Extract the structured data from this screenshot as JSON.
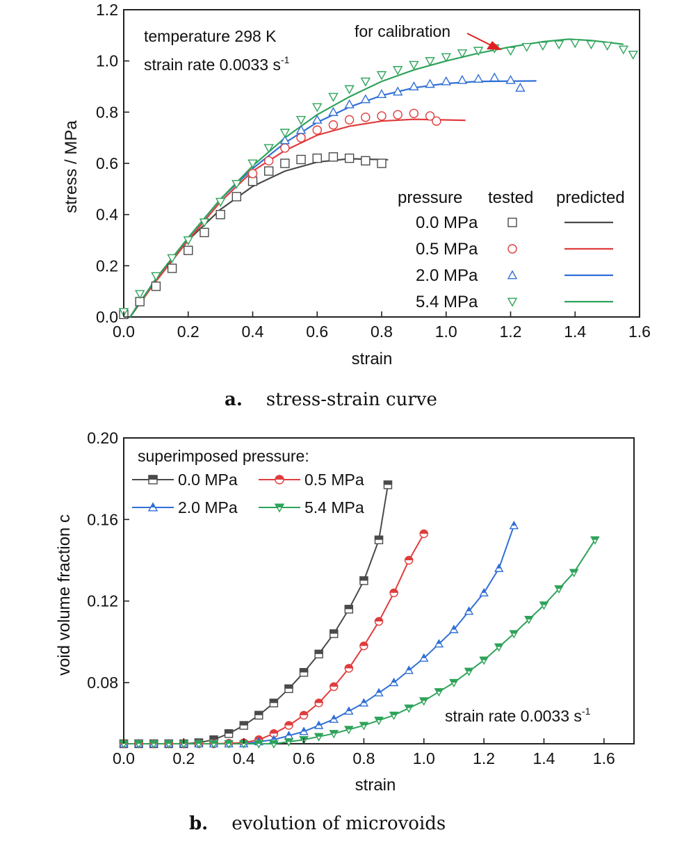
{
  "figure": {
    "panel_a_caption": {
      "letter": "a.",
      "text": "stress-strain curve"
    },
    "panel_b_caption": {
      "letter": "b.",
      "text": "evolution of microvoids"
    }
  },
  "chart_data": [
    {
      "type": "line",
      "panel": "a",
      "xlabel": "strain",
      "ylabel": "stress / MPa",
      "xlim": [
        0,
        1.6
      ],
      "ylim": [
        0,
        1.2
      ],
      "xticks": [
        "0.0",
        "0.2",
        "0.4",
        "0.6",
        "0.8",
        "1.0",
        "1.2",
        "1.4",
        "1.6"
      ],
      "yticks": [
        "0.0",
        "0.2",
        "0.4",
        "0.6",
        "0.8",
        "1.0",
        "1.2"
      ],
      "annotations": {
        "condition_line1": "temperature 298 K",
        "condition_line2": "strain rate 0.0033 s",
        "condition_sup": "-1",
        "arrow_label": "for calibration"
      },
      "legend": {
        "placement": "bottom-right",
        "header_pressure": "pressure",
        "header_tested": "tested",
        "header_predicted": "predicted"
      },
      "series": [
        {
          "name": "0.0 MPa",
          "color": "#4a4a4a",
          "marker": "square",
          "predicted": [
            [
              0.02,
              0
            ],
            [
              0.05,
              0.06
            ],
            [
              0.1,
              0.14
            ],
            [
              0.15,
              0.22
            ],
            [
              0.2,
              0.3
            ],
            [
              0.3,
              0.42
            ],
            [
              0.4,
              0.51
            ],
            [
              0.5,
              0.57
            ],
            [
              0.6,
              0.605
            ],
            [
              0.7,
              0.618
            ],
            [
              0.82,
              0.614
            ]
          ],
          "tested": [
            [
              0,
              0.01
            ],
            [
              0.05,
              0.06
            ],
            [
              0.1,
              0.12
            ],
            [
              0.15,
              0.19
            ],
            [
              0.2,
              0.26
            ],
            [
              0.25,
              0.33
            ],
            [
              0.3,
              0.4
            ],
            [
              0.35,
              0.47
            ],
            [
              0.4,
              0.53
            ],
            [
              0.45,
              0.57
            ],
            [
              0.5,
              0.6
            ],
            [
              0.55,
              0.615
            ],
            [
              0.6,
              0.62
            ],
            [
              0.65,
              0.625
            ],
            [
              0.7,
              0.62
            ],
            [
              0.75,
              0.61
            ],
            [
              0.8,
              0.6
            ]
          ]
        },
        {
          "name": "0.5 MPa",
          "color": "#e03c3c",
          "marker": "circle",
          "predicted": [
            [
              0.02,
              0
            ],
            [
              0.1,
              0.14
            ],
            [
              0.2,
              0.3
            ],
            [
              0.3,
              0.45
            ],
            [
              0.4,
              0.57
            ],
            [
              0.5,
              0.65
            ],
            [
              0.6,
              0.71
            ],
            [
              0.7,
              0.745
            ],
            [
              0.8,
              0.765
            ],
            [
              0.9,
              0.772
            ],
            [
              1.06,
              0.768
            ]
          ],
          "tested": [
            [
              0.4,
              0.56
            ],
            [
              0.45,
              0.61
            ],
            [
              0.5,
              0.66
            ],
            [
              0.55,
              0.7
            ],
            [
              0.6,
              0.73
            ],
            [
              0.65,
              0.75
            ],
            [
              0.7,
              0.77
            ],
            [
              0.75,
              0.78
            ],
            [
              0.8,
              0.785
            ],
            [
              0.85,
              0.79
            ],
            [
              0.9,
              0.795
            ],
            [
              0.95,
              0.785
            ],
            [
              0.97,
              0.765
            ]
          ]
        },
        {
          "name": "2.0 MPa",
          "color": "#2f6fd6",
          "marker": "triangle-up",
          "predicted": [
            [
              0.02,
              0
            ],
            [
              0.1,
              0.15
            ],
            [
              0.2,
              0.31
            ],
            [
              0.3,
              0.46
            ],
            [
              0.4,
              0.58
            ],
            [
              0.5,
              0.68
            ],
            [
              0.6,
              0.76
            ],
            [
              0.7,
              0.82
            ],
            [
              0.8,
              0.865
            ],
            [
              0.9,
              0.895
            ],
            [
              1.0,
              0.912
            ],
            [
              1.1,
              0.92
            ],
            [
              1.28,
              0.922
            ]
          ],
          "tested": [
            [
              0.5,
              0.69
            ],
            [
              0.55,
              0.73
            ],
            [
              0.6,
              0.77
            ],
            [
              0.65,
              0.8
            ],
            [
              0.7,
              0.83
            ],
            [
              0.75,
              0.85
            ],
            [
              0.8,
              0.87
            ],
            [
              0.85,
              0.88
            ],
            [
              0.9,
              0.9
            ],
            [
              0.95,
              0.91
            ],
            [
              1.0,
              0.92
            ],
            [
              1.05,
              0.925
            ],
            [
              1.1,
              0.93
            ],
            [
              1.15,
              0.935
            ],
            [
              1.2,
              0.925
            ],
            [
              1.23,
              0.895
            ]
          ]
        },
        {
          "name": "5.4 MPa",
          "color": "#2ea35a",
          "marker": "triangle-down",
          "predicted": [
            [
              0.02,
              0
            ],
            [
              0.1,
              0.15
            ],
            [
              0.2,
              0.31
            ],
            [
              0.3,
              0.46
            ],
            [
              0.4,
              0.59
            ],
            [
              0.5,
              0.7
            ],
            [
              0.6,
              0.79
            ],
            [
              0.7,
              0.86
            ],
            [
              0.8,
              0.92
            ],
            [
              0.9,
              0.965
            ],
            [
              1.0,
              1.0
            ],
            [
              1.1,
              1.03
            ],
            [
              1.2,
              1.055
            ],
            [
              1.3,
              1.075
            ],
            [
              1.38,
              1.085
            ],
            [
              1.45,
              1.08
            ],
            [
              1.55,
              1.065
            ]
          ],
          "tested": [
            [
              0,
              0.02
            ],
            [
              0.05,
              0.09
            ],
            [
              0.1,
              0.16
            ],
            [
              0.15,
              0.23
            ],
            [
              0.2,
              0.3
            ],
            [
              0.25,
              0.37
            ],
            [
              0.3,
              0.45
            ],
            [
              0.35,
              0.52
            ],
            [
              0.4,
              0.6
            ],
            [
              0.45,
              0.66
            ],
            [
              0.5,
              0.72
            ],
            [
              0.55,
              0.77
            ],
            [
              0.6,
              0.82
            ],
            [
              0.65,
              0.86
            ],
            [
              0.7,
              0.89
            ],
            [
              0.75,
              0.92
            ],
            [
              0.8,
              0.945
            ],
            [
              0.85,
              0.965
            ],
            [
              0.9,
              0.985
            ],
            [
              0.95,
              1.0
            ],
            [
              1.0,
              1.015
            ],
            [
              1.05,
              1.03
            ],
            [
              1.1,
              1.04
            ],
            [
              1.15,
              1.05
            ],
            [
              1.2,
              1.04
            ],
            [
              1.25,
              1.055
            ],
            [
              1.3,
              1.06
            ],
            [
              1.35,
              1.065
            ],
            [
              1.4,
              1.07
            ],
            [
              1.45,
              1.065
            ],
            [
              1.5,
              1.06
            ],
            [
              1.55,
              1.045
            ],
            [
              1.58,
              1.025
            ]
          ]
        }
      ]
    },
    {
      "type": "line",
      "panel": "b",
      "xlabel": "strain",
      "ylabel": "void volume fraction c",
      "xlim": [
        0,
        1.7
      ],
      "ylim": [
        0.05,
        0.2
      ],
      "xticks": [
        "0.0",
        "0.2",
        "0.4",
        "0.6",
        "0.8",
        "1.0",
        "1.2",
        "1.4",
        "1.6"
      ],
      "yticks": [
        "0.08",
        "0.12",
        "0.16",
        "0.20"
      ],
      "annotations": {
        "strain_rate_text": "strain rate 0.0033 s",
        "strain_rate_sup": "-1"
      },
      "legend": {
        "placement": "top-left",
        "title": "superimposed pressure:"
      },
      "series": [
        {
          "name": "0.0 MPa",
          "color": "#4a4a4a",
          "marker": "half-square",
          "points": [
            [
              0,
              0.05
            ],
            [
              0.1,
              0.05
            ],
            [
              0.2,
              0.05
            ],
            [
              0.25,
              0.0505
            ],
            [
              0.3,
              0.052
            ],
            [
              0.35,
              0.055
            ],
            [
              0.4,
              0.059
            ],
            [
              0.45,
              0.064
            ],
            [
              0.5,
              0.07
            ],
            [
              0.55,
              0.077
            ],
            [
              0.6,
              0.085
            ],
            [
              0.65,
              0.094
            ],
            [
              0.7,
              0.104
            ],
            [
              0.75,
              0.116
            ],
            [
              0.8,
              0.13
            ],
            [
              0.85,
              0.15
            ],
            [
              0.88,
              0.177
            ]
          ]
        },
        {
          "name": "0.5 MPa",
          "color": "#e03c3c",
          "marker": "half-circle",
          "points": [
            [
              0,
              0.05
            ],
            [
              0.3,
              0.05
            ],
            [
              0.4,
              0.0505
            ],
            [
              0.45,
              0.052
            ],
            [
              0.5,
              0.055
            ],
            [
              0.55,
              0.059
            ],
            [
              0.6,
              0.064
            ],
            [
              0.65,
              0.07
            ],
            [
              0.7,
              0.078
            ],
            [
              0.75,
              0.087
            ],
            [
              0.8,
              0.098
            ],
            [
              0.85,
              0.11
            ],
            [
              0.9,
              0.124
            ],
            [
              0.95,
              0.14
            ],
            [
              1.0,
              0.153
            ]
          ]
        },
        {
          "name": "2.0 MPa",
          "color": "#2f6fd6",
          "marker": "half-triangle-up",
          "points": [
            [
              0,
              0.05
            ],
            [
              0.4,
              0.05
            ],
            [
              0.5,
              0.052
            ],
            [
              0.6,
              0.056
            ],
            [
              0.7,
              0.062
            ],
            [
              0.8,
              0.07
            ],
            [
              0.9,
              0.08
            ],
            [
              1.0,
              0.092
            ],
            [
              1.1,
              0.106
            ],
            [
              1.2,
              0.124
            ],
            [
              1.25,
              0.136
            ],
            [
              1.3,
              0.157
            ]
          ]
        },
        {
          "name": "5.4 MPa",
          "color": "#2ea35a",
          "marker": "half-triangle-down",
          "points": [
            [
              0,
              0.05
            ],
            [
              0.5,
              0.05
            ],
            [
              0.6,
              0.052
            ],
            [
              0.7,
              0.055
            ],
            [
              0.8,
              0.059
            ],
            [
              0.9,
              0.064
            ],
            [
              1.0,
              0.071
            ],
            [
              1.1,
              0.08
            ],
            [
              1.2,
              0.091
            ],
            [
              1.3,
              0.104
            ],
            [
              1.4,
              0.118
            ],
            [
              1.5,
              0.134
            ],
            [
              1.57,
              0.15
            ]
          ]
        }
      ]
    }
  ]
}
